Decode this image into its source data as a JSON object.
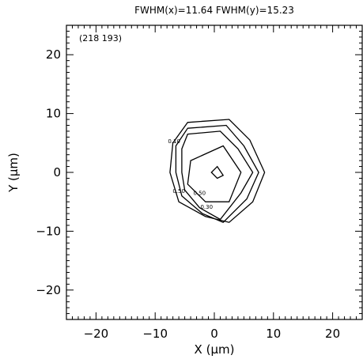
{
  "chart_data": {
    "type": "contour",
    "title": "FWHM(x)=11.64  FWHM(y)=15.23",
    "corner_label": "(218 193)",
    "xlabel": "X (μm)",
    "ylabel": "Y (μm)",
    "xlim": [
      -25,
      25
    ],
    "ylim": [
      -25,
      25
    ],
    "xticks": [
      -20,
      -10,
      0,
      10,
      20
    ],
    "yticks": [
      -20,
      -10,
      0,
      10,
      20
    ],
    "xtick_labels": [
      "−20",
      "−10",
      "0",
      "10",
      "20"
    ],
    "ytick_labels": [
      "−20",
      "−10",
      "0",
      "10",
      "20"
    ],
    "grid": false,
    "contours": [
      {
        "level": "0.10",
        "points": [
          [
            -4.5,
            8.5
          ],
          [
            2.5,
            9
          ],
          [
            6,
            5.5
          ],
          [
            8.5,
            0
          ],
          [
            6.5,
            -5
          ],
          [
            2.5,
            -8.5
          ],
          [
            -1.5,
            -7.5
          ],
          [
            -6,
            -5
          ],
          [
            -7.5,
            0
          ],
          [
            -7,
            5
          ]
        ]
      },
      {
        "level": "0.30",
        "points": [
          [
            -4.5,
            7.5
          ],
          [
            2,
            8
          ],
          [
            5,
            4.5
          ],
          [
            7.5,
            0
          ],
          [
            5.5,
            -4.5
          ],
          [
            1.5,
            -8.5
          ],
          [
            -2,
            -7
          ],
          [
            -5.5,
            -4
          ],
          [
            -6.5,
            0
          ],
          [
            -6.5,
            4.5
          ]
        ]
      },
      {
        "level": "0.50",
        "points": [
          [
            -4.5,
            6.5
          ],
          [
            1,
            7
          ],
          [
            4,
            4
          ],
          [
            6.5,
            0
          ],
          [
            4.5,
            -3.5
          ],
          [
            1,
            -8
          ],
          [
            -2.5,
            -6
          ],
          [
            -5,
            -3
          ],
          [
            -5.5,
            0
          ],
          [
            -5.5,
            4
          ]
        ]
      },
      {
        "level": "0.70",
        "points": [
          [
            -4,
            2
          ],
          [
            1.5,
            4.5
          ],
          [
            4.5,
            0
          ],
          [
            2.5,
            -5
          ],
          [
            -1.5,
            -5
          ],
          [
            -4.5,
            -2
          ]
        ]
      },
      {
        "level": "0.90",
        "points": [
          [
            0.5,
            1
          ],
          [
            1.5,
            -0.5
          ],
          [
            0.5,
            -1
          ],
          [
            -0.5,
            0
          ]
        ]
      }
    ],
    "contour_labels": [
      {
        "text": "0.10",
        "x": -6.8,
        "y": 5
      },
      {
        "text": "0.50",
        "x": -6.0,
        "y": -3.5
      },
      {
        "text": "0.50",
        "x": -2.5,
        "y": -3.8
      },
      {
        "text": "0.30",
        "x": -1.3,
        "y": -6.2
      }
    ]
  }
}
